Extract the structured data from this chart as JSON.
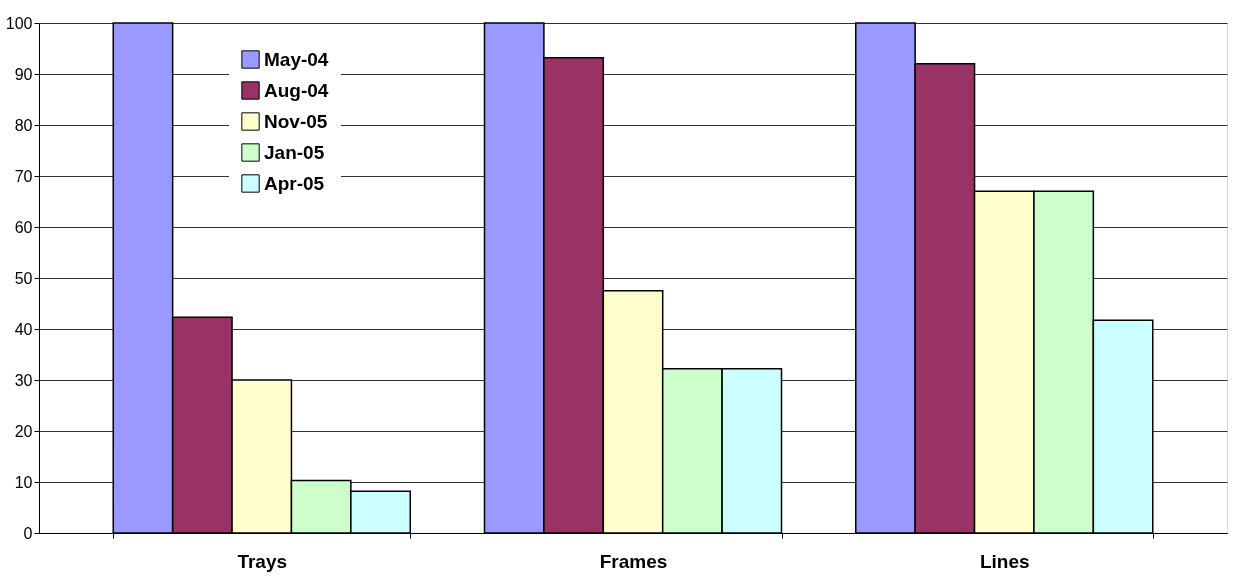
{
  "chart_data": {
    "type": "bar",
    "categories": [
      "Trays",
      "Frames",
      "Lines"
    ],
    "series": [
      {
        "name": "May-04",
        "color": "#9999ff",
        "values": [
          100,
          100,
          100
        ]
      },
      {
        "name": "Aug-04",
        "color": "#993366",
        "values": [
          42.3,
          93.2,
          92
        ]
      },
      {
        "name": "Nov-05",
        "color": "#ffffcc",
        "values": [
          30,
          47.5,
          67
        ]
      },
      {
        "name": "Jan-05",
        "color": "#ccffcc",
        "values": [
          10.3,
          32.2,
          67
        ]
      },
      {
        "name": "Apr-05",
        "color": "#ccffff",
        "values": [
          8.2,
          32.2,
          41.7
        ]
      }
    ],
    "ylim": [
      0,
      100
    ],
    "yticks": [
      0,
      10,
      20,
      30,
      40,
      50,
      60,
      70,
      80,
      90,
      100
    ],
    "grid": "y",
    "legend": "top left"
  }
}
